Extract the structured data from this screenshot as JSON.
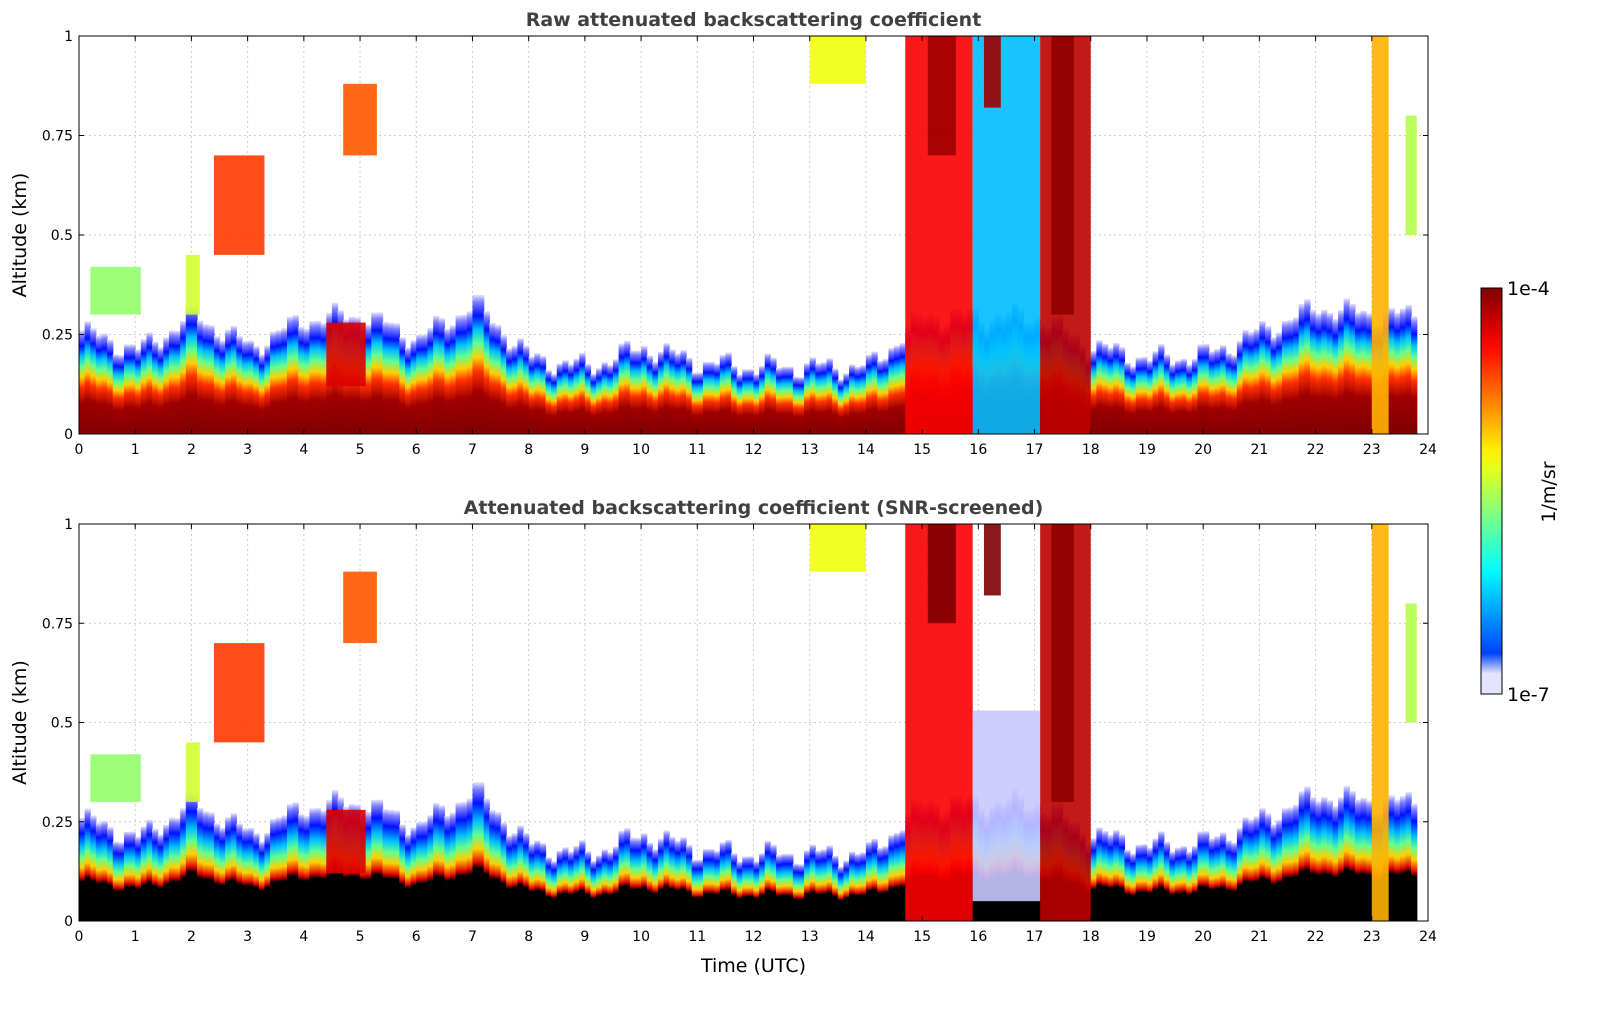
{
  "chart_data": [
    {
      "type": "heatmap",
      "title": "Raw attenuated backscattering coefficient",
      "xlabel": "",
      "ylabel": "Altitude (km)",
      "xlim": [
        0,
        24
      ],
      "ylim": [
        0,
        1
      ],
      "xticks": [
        "0",
        "1",
        "2",
        "3",
        "4",
        "5",
        "6",
        "7",
        "8",
        "9",
        "10",
        "11",
        "12",
        "13",
        "14",
        "15",
        "16",
        "17",
        "18",
        "19",
        "20",
        "21",
        "22",
        "23",
        "24"
      ],
      "yticks": [
        "0",
        "0.25",
        "0.5",
        "0.75",
        "1"
      ],
      "grid": true,
      "screened": false,
      "layer_top_km_hourly": [
        0.26,
        0.21,
        0.3,
        0.22,
        0.29,
        0.3,
        0.24,
        0.33,
        0.19,
        0.17,
        0.22,
        0.18,
        0.17,
        0.17,
        0.17,
        0.3,
        0.3,
        0.3,
        0.22,
        0.19,
        0.2,
        0.26,
        0.32,
        0.3,
        0.3
      ],
      "features": [
        {
          "t": [
            0.2,
            1.1
          ],
          "z": [
            0.3,
            0.42
          ],
          "log10": -5.6
        },
        {
          "t": [
            1.9,
            2.15
          ],
          "z": [
            0.3,
            0.45
          ],
          "log10": -5.4
        },
        {
          "t": [
            2.4,
            3.3
          ],
          "z": [
            0.45,
            0.7
          ],
          "log10": -4.6
        },
        {
          "t": [
            4.7,
            5.3
          ],
          "z": [
            0.7,
            0.88
          ],
          "log10": -4.7
        },
        {
          "t": [
            4.4,
            5.1
          ],
          "z": [
            0.12,
            0.28
          ],
          "log10": -4.3
        },
        {
          "t": [
            13.0,
            14.0
          ],
          "z": [
            0.88,
            1.0
          ],
          "log10": -5.3
        },
        {
          "t": [
            14.7,
            15.9
          ],
          "z": [
            0.0,
            1.0
          ],
          "log10": -4.4
        },
        {
          "t": [
            15.1,
            15.6
          ],
          "z": [
            0.7,
            1.0
          ],
          "log10": -4.1
        },
        {
          "t": [
            15.9,
            17.1
          ],
          "z": [
            0.0,
            1.0
          ],
          "log10": -6.3
        },
        {
          "t": [
            16.1,
            16.4
          ],
          "z": [
            0.82,
            1.0
          ],
          "log10": -4.1
        },
        {
          "t": [
            17.1,
            18.0
          ],
          "z": [
            0.0,
            1.0
          ],
          "log10": -4.2
        },
        {
          "t": [
            17.3,
            17.7
          ],
          "z": [
            0.3,
            1.0
          ],
          "log10": -4.05
        },
        {
          "t": [
            23.0,
            23.3
          ],
          "z": [
            0.0,
            1.0
          ],
          "log10": -5.0
        },
        {
          "t": [
            23.6,
            23.8
          ],
          "z": [
            0.5,
            0.8
          ],
          "log10": -5.5
        }
      ],
      "data_end_hour": 23.8
    },
    {
      "type": "heatmap",
      "title": "Attenuated backscattering coefficient (SNR-screened)",
      "xlabel": "Time (UTC)",
      "ylabel": "Altitude (km)",
      "xlim": [
        0,
        24
      ],
      "ylim": [
        0,
        1
      ],
      "xticks": [
        "0",
        "1",
        "2",
        "3",
        "4",
        "5",
        "6",
        "7",
        "8",
        "9",
        "10",
        "11",
        "12",
        "13",
        "14",
        "15",
        "16",
        "17",
        "18",
        "19",
        "20",
        "21",
        "22",
        "23",
        "24"
      ],
      "yticks": [
        "0",
        "0.25",
        "0.5",
        "0.75",
        "1"
      ],
      "grid": true,
      "screened": true,
      "layer_top_km_hourly": [
        0.26,
        0.21,
        0.3,
        0.22,
        0.29,
        0.3,
        0.24,
        0.33,
        0.19,
        0.17,
        0.22,
        0.18,
        0.17,
        0.17,
        0.17,
        0.3,
        0.3,
        0.3,
        0.22,
        0.19,
        0.2,
        0.26,
        0.32,
        0.3,
        0.3
      ],
      "features": [
        {
          "t": [
            0.2,
            1.1
          ],
          "z": [
            0.3,
            0.42
          ],
          "log10": -5.6
        },
        {
          "t": [
            1.9,
            2.15
          ],
          "z": [
            0.3,
            0.45
          ],
          "log10": -5.4
        },
        {
          "t": [
            2.4,
            3.3
          ],
          "z": [
            0.45,
            0.7
          ],
          "log10": -4.6
        },
        {
          "t": [
            4.7,
            5.3
          ],
          "z": [
            0.7,
            0.88
          ],
          "log10": -4.7
        },
        {
          "t": [
            4.4,
            5.1
          ],
          "z": [
            0.12,
            0.28
          ],
          "log10": -4.3
        },
        {
          "t": [
            13.0,
            14.0
          ],
          "z": [
            0.88,
            1.0
          ],
          "log10": -5.3
        },
        {
          "t": [
            14.7,
            15.9
          ],
          "z": [
            0.0,
            1.0
          ],
          "log10": -4.4
        },
        {
          "t": [
            15.1,
            15.6
          ],
          "z": [
            0.75,
            1.0
          ],
          "log10": -3.9
        },
        {
          "t": [
            15.9,
            17.1
          ],
          "z": [
            0.05,
            0.53
          ],
          "log10": -6.6
        },
        {
          "t": [
            16.1,
            16.4
          ],
          "z": [
            0.82,
            1.0
          ],
          "log10": -3.9
        },
        {
          "t": [
            17.1,
            18.0
          ],
          "z": [
            0.0,
            1.0
          ],
          "log10": -4.2
        },
        {
          "t": [
            17.3,
            17.7
          ],
          "z": [
            0.3,
            1.0
          ],
          "log10": -4.05
        },
        {
          "t": [
            23.0,
            23.3
          ],
          "z": [
            0.0,
            1.0
          ],
          "log10": -5.0
        },
        {
          "t": [
            23.6,
            23.8
          ],
          "z": [
            0.5,
            0.8
          ],
          "log10": -5.5
        }
      ],
      "data_end_hour": 23.8
    }
  ],
  "colorbar": {
    "label": "1/m/sr",
    "max_label": "1e-4",
    "min_label": "1e-7",
    "log10_range": [
      -7,
      -4
    ]
  }
}
